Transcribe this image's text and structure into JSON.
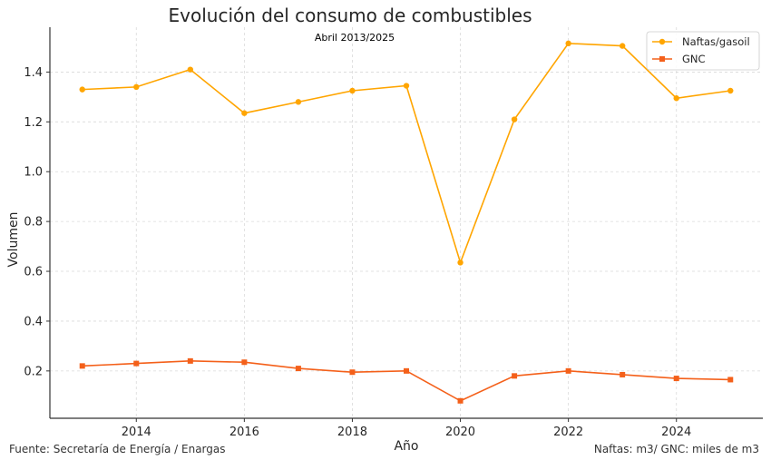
{
  "chart_data": {
    "type": "line",
    "title": "Evolución del consumo de combustibles",
    "subtitle": "Abril 2013/2025",
    "xlabel": "Año",
    "ylabel": "Volumen",
    "x": [
      2013,
      2014,
      2015,
      2016,
      2017,
      2018,
      2019,
      2020,
      2021,
      2022,
      2023,
      2024,
      2025
    ],
    "xticks": [
      2014,
      2016,
      2018,
      2020,
      2022,
      2024
    ],
    "yticks": [
      0.2,
      0.4,
      0.6,
      0.8,
      1.0,
      1.2,
      1.4
    ],
    "ytick_labels": [
      "0.2",
      "0.4",
      "0.6",
      "0.8",
      "1.0",
      "1.2",
      "1.4"
    ],
    "xlim": [
      2012.4,
      2025.6
    ],
    "ylim": [
      0.01,
      1.58
    ],
    "grid": true,
    "legend_position": "top-right",
    "series": [
      {
        "name": "Naftas/gasoil",
        "color": "#FFA500",
        "marker": "circle",
        "values": [
          1.33,
          1.34,
          1.41,
          1.235,
          1.28,
          1.325,
          1.345,
          0.635,
          1.21,
          1.515,
          1.505,
          1.295,
          1.325
        ]
      },
      {
        "name": "GNC",
        "color": "#F4601A",
        "marker": "square",
        "values": [
          0.22,
          0.23,
          0.24,
          0.235,
          0.21,
          0.195,
          0.2,
          0.08,
          0.18,
          0.2,
          0.185,
          0.17,
          0.165
        ]
      }
    ],
    "annotations": {
      "source": "Fuente: Secretaría de Energía / Enargas",
      "units": "Naftas: m3/ GNC: miles de m3"
    }
  }
}
